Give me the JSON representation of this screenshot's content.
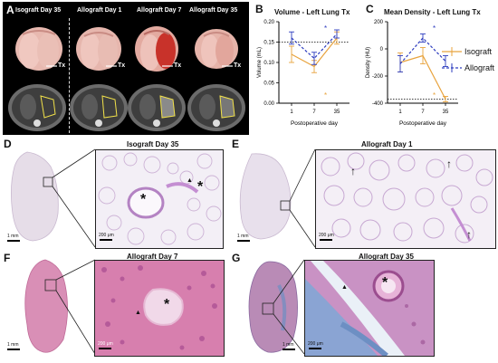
{
  "panelA": {
    "letter": "A",
    "groups": [
      "Isograft Day 35",
      "Allograft Day 1",
      "Allograft Day 7",
      "Allograft Day 35"
    ],
    "tx_label": "Tx"
  },
  "panelB": {
    "letter": "B",
    "chart_data": {
      "type": "line",
      "title": "Volume - Left Lung Tx",
      "xlabel": "Postoperative day",
      "ylabel": "Volume (mL)",
      "categories": [
        "1",
        "7",
        "35"
      ],
      "ylim": [
        0,
        0.2
      ],
      "yticks": [
        "0.00",
        "0.05",
        "0.10",
        "0.15",
        "0.20"
      ],
      "series": [
        {
          "name": "Isograft",
          "color": "#E8A33D",
          "values": [
            0.12,
            0.09,
            0.16
          ],
          "err": [
            0.02,
            0.015,
            0.015
          ]
        },
        {
          "name": "Allograft",
          "color": "#2E3DBF",
          "values": [
            0.16,
            0.11,
            0.17
          ],
          "err": [
            0.015,
            0.015,
            0.01
          ]
        }
      ],
      "reference_line": 0.15,
      "annotations": [
        "*",
        "*"
      ]
    }
  },
  "panelC": {
    "letter": "C",
    "chart_data": {
      "type": "line",
      "title": "Mean Density - Left Lung Tx",
      "xlabel": "Postoperative day",
      "ylabel": "Density (HU)",
      "categories": [
        "1",
        "7",
        "35"
      ],
      "ylim": [
        -400,
        200
      ],
      "yticks": [
        "-400",
        "-200",
        "0",
        "200"
      ],
      "series": [
        {
          "name": "Isograft",
          "color": "#E8A33D",
          "values": [
            -100,
            -50,
            -370
          ],
          "err": [
            70,
            60,
            20
          ]
        },
        {
          "name": "Allograft",
          "color": "#2E3DBF",
          "values": [
            -110,
            80,
            -90
          ],
          "err": [
            60,
            30,
            40
          ]
        }
      ],
      "reference_line": -370,
      "annotations": [
        "*",
        "*"
      ]
    }
  },
  "legend": {
    "items": [
      "Isograft",
      "Allograft"
    ]
  },
  "panelD": {
    "letter": "D",
    "title": "Isograft Day 35",
    "scale_big": "1 mm",
    "scale_small": "200 μm"
  },
  "panelE": {
    "letter": "E",
    "title": "Allograft Day 1",
    "scale_big": "1 mm",
    "scale_small": "200 μm"
  },
  "panelF": {
    "letter": "F",
    "title": "Allograft Day 7",
    "scale_big": "1 mm",
    "scale_small": "200 μm"
  },
  "panelG": {
    "letter": "G",
    "title": "Allograft Day 35",
    "scale_big": "1 mm",
    "scale_small": "200 μm"
  },
  "marks": {
    "asterisk": "*",
    "triangle": "▲",
    "arrow": "↑"
  }
}
